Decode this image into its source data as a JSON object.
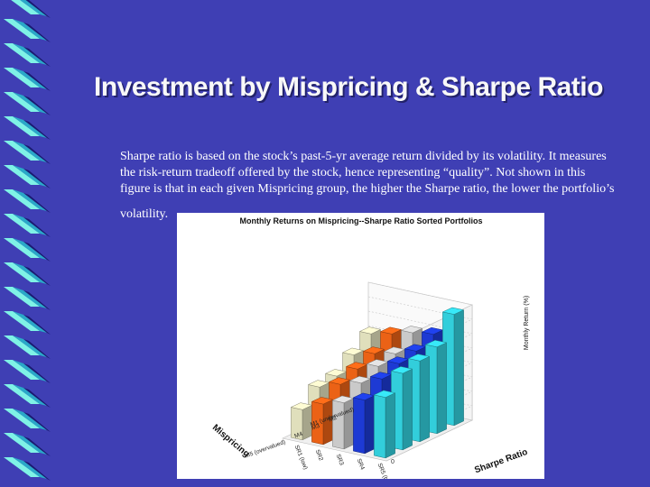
{
  "slide": {
    "title": "Investment by Mispricing & Sharpe Ratio",
    "body_lines": [
      "Sharpe ratio is based on the stock’s past-5-yr average return divided by its volatility. It measures",
      "the risk-return tradeoff offered by the stock, hence representing “quality”. Not shown in this",
      "figure is that in each given Mispricing group, the higher the Sharpe ratio, the lower the portfolio’s",
      "volatility."
    ],
    "colors": {
      "background": "#3f3fb4",
      "strip_light": "#7ff2e6",
      "strip_dark": "#1a1a70",
      "strip_mid": "#2aa8c8"
    }
  },
  "chart_data": {
    "type": "bar3d",
    "title": "Monthly Returns on Mispricing--Sharpe Ratio Sorted Portfolios",
    "zlabel": "Monthly Return (%)",
    "zlim": [
      0,
      4
    ],
    "zticks": [
      "0",
      "0.5",
      "1",
      "1.5",
      "2",
      "2.5",
      "3",
      "3.5",
      "4"
    ],
    "x_axis_label": "Mispricing",
    "y_axis_label": "Sharpe Ratio",
    "mispricing_labels": [
      "M1 (undervalued)",
      "M2",
      "M3",
      "M4",
      "M5 (overvalued)"
    ],
    "sharpe_labels": [
      "SR1 (low)",
      "SR2",
      "SR3",
      "SR4",
      "SR5 (high)"
    ],
    "series_colors": [
      "#f4f2cc",
      "#ff6a18",
      "#dcdcdc",
      "#1f3fe6",
      "#36e0ee"
    ],
    "values": [
      [
        2.55,
        2.7,
        2.9,
        3.0,
        3.85
      ],
      [
        2.1,
        2.3,
        2.45,
        2.7,
        3.0
      ],
      [
        1.65,
        2.05,
        2.3,
        2.55,
        2.8
      ],
      [
        1.55,
        1.8,
        2.0,
        2.3,
        2.65
      ],
      [
        1.05,
        1.4,
        1.6,
        1.85,
        2.1
      ]
    ]
  }
}
